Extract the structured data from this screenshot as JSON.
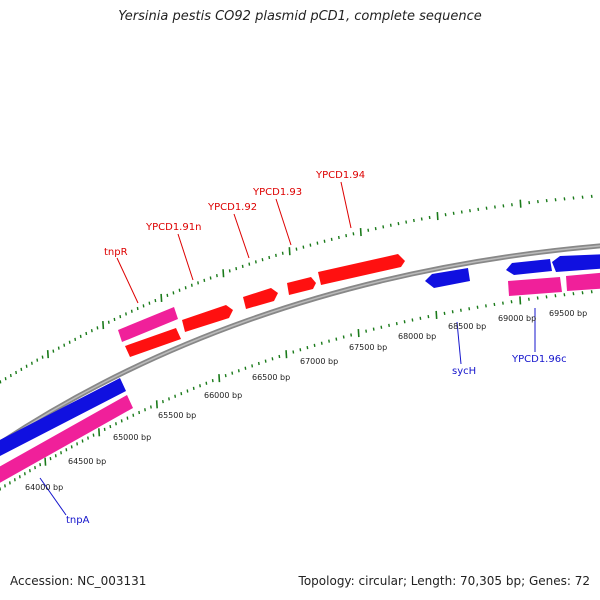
{
  "title": "Yersinia pestis CO92 plasmid pCD1, complete sequence",
  "footer": {
    "accession": "Accession: NC_003131",
    "summary": "Topology: circular; Length: 70,305 bp; Genes: 72"
  },
  "colors": {
    "backbone": "#888888",
    "tick": "#1a7a1a",
    "forward_cds": "#ff1010",
    "forward_gene": "#f0209a",
    "reverse_cds": "#1010e0",
    "reverse_gene": "#f0209a",
    "forward_label": "#dd0000",
    "reverse_label": "#1515cc"
  },
  "position_labels": [
    "64000 bp",
    "64500 bp",
    "65000 bp",
    "65500 bp",
    "66000 bp",
    "66500 bp",
    "67000 bp",
    "67500 bp",
    "68000 bp",
    "68500 bp",
    "69000 bp",
    "69500 bp"
  ],
  "forward_labels": [
    "tnpR",
    "YPCD1.91n",
    "YPCD1.92",
    "YPCD1.93",
    "YPCD1.94"
  ],
  "reverse_labels": [
    "tnpA",
    "sycH",
    "YPCD1.96c"
  ]
}
